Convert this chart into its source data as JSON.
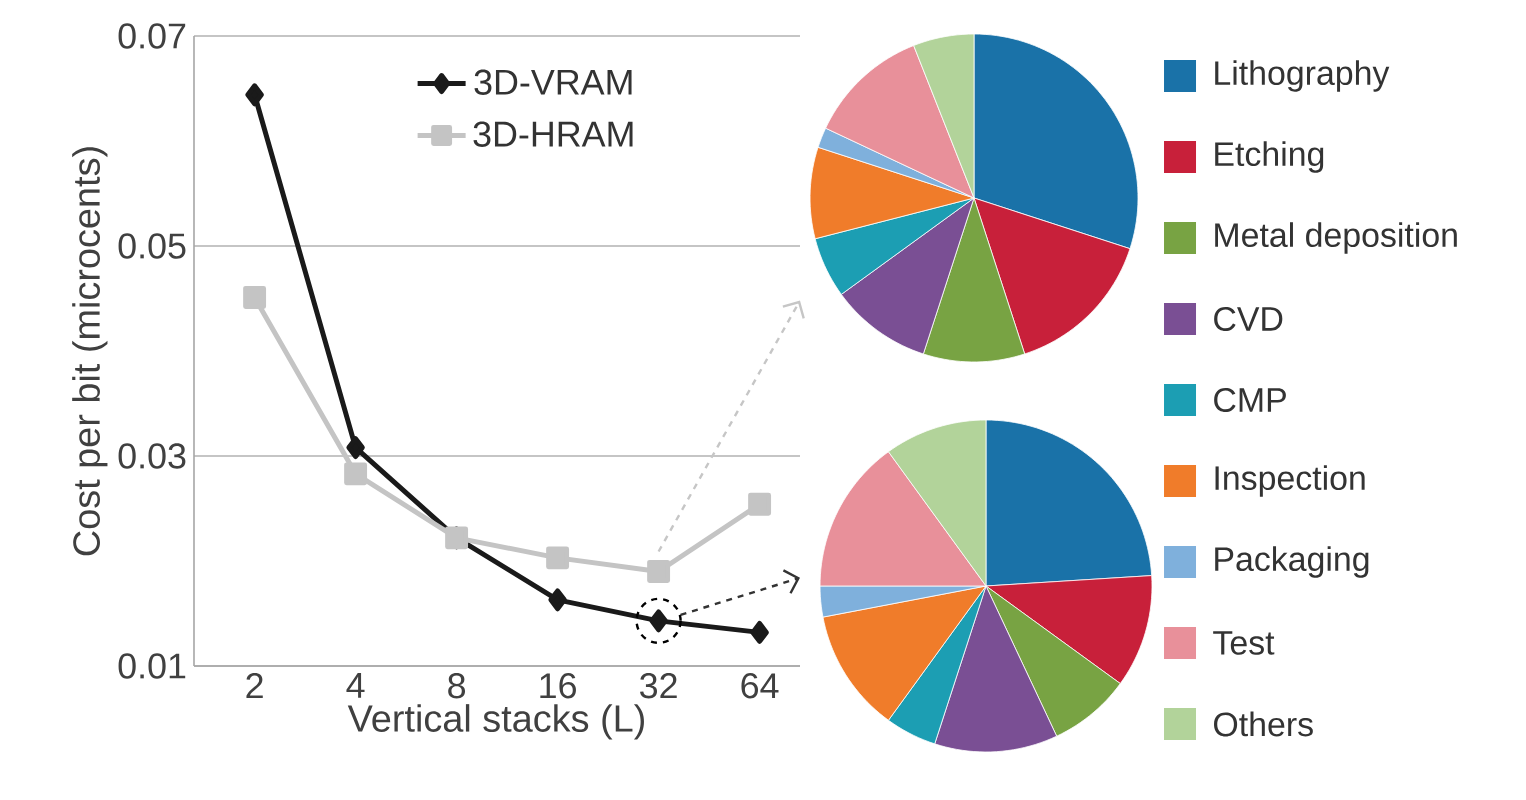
{
  "chart_data": [
    {
      "type": "line",
      "xlabel": "Vertical stacks (L)",
      "ylabel": "Cost per bit (microcents)",
      "categories": [
        "2",
        "4",
        "8",
        "16",
        "32",
        "64"
      ],
      "ylim": [
        0.01,
        0.07
      ],
      "yticks": [
        0.01,
        0.03,
        0.05,
        0.07
      ],
      "grid": "y",
      "legend": "top",
      "series": [
        {
          "name": "3D-VRAM",
          "color": "#1a1a1a",
          "marker": "diamond",
          "values": [
            0.0644,
            0.0308,
            0.0222,
            0.0163,
            0.0143,
            0.0132
          ]
        },
        {
          "name": "3D-HRAM",
          "color": "#c4c4c4",
          "marker": "square",
          "values": [
            0.0451,
            0.0283,
            0.0222,
            0.0203,
            0.019,
            0.0254
          ]
        }
      ]
    },
    {
      "type": "pie",
      "legend": "right",
      "categories": [
        "Lithography",
        "Etching",
        "Metal deposition",
        "CVD",
        "CMP",
        "Inspection",
        "Packaging",
        "Test",
        "Others"
      ],
      "values": [
        30,
        15,
        10,
        10,
        6,
        9,
        2,
        12,
        6
      ],
      "colors": [
        "#1a72a8",
        "#c8203a",
        "#78a343",
        "#7a4f94",
        "#1c9eb3",
        "#f07c2a",
        "#7fb0dc",
        "#e8909a",
        "#b2d39a"
      ]
    },
    {
      "type": "pie",
      "categories": [
        null,
        null,
        null,
        null,
        null,
        null,
        null,
        null,
        null
      ],
      "values": [
        24,
        11,
        8,
        12,
        5,
        12,
        3,
        15,
        10
      ],
      "colors": [
        "#1a72a8",
        "#c8203a",
        "#78a343",
        "#7a4f94",
        "#1c9eb3",
        "#f07c2a",
        "#7fb0dc",
        "#e8909a",
        "#b2d39a"
      ]
    }
  ]
}
